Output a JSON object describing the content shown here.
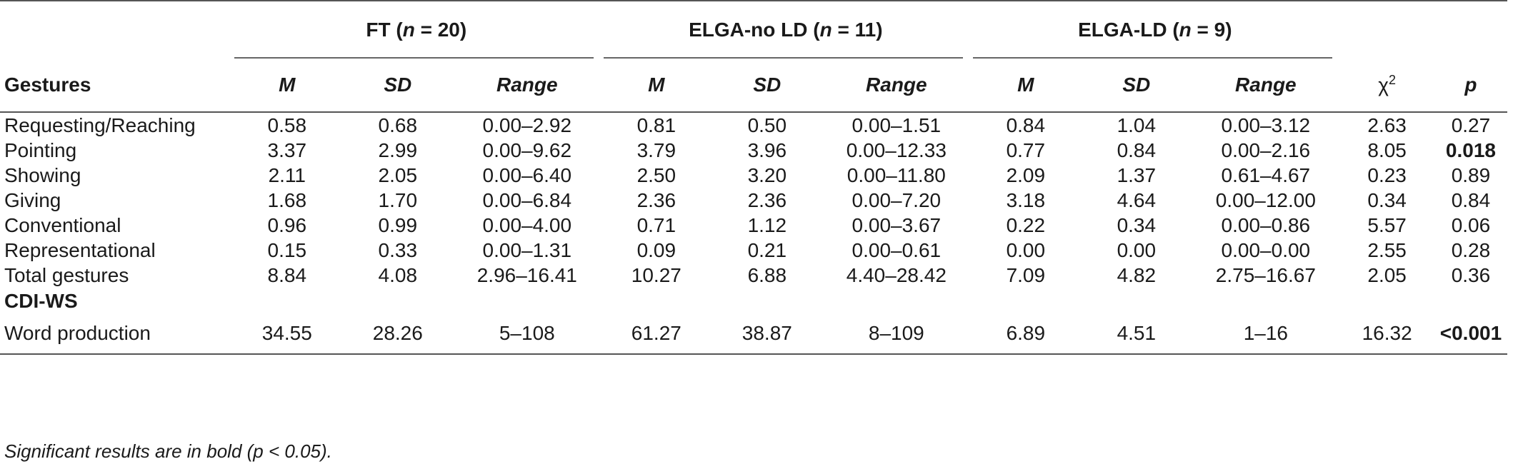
{
  "groups": {
    "ft": "FT (n = 20)",
    "elga_no_ld": "ELGA-no LD (n = 11)",
    "elga_ld": "ELGA-LD (n = 9)"
  },
  "headers": {
    "gestures": "Gestures",
    "m": "M",
    "sd": "SD",
    "range": "Range",
    "chi_base": "χ",
    "chi_sup": "2",
    "p": "p"
  },
  "rows": [
    {
      "label": "Requesting/Reaching",
      "ft": [
        "0.58",
        "0.68",
        "0.00–2.92"
      ],
      "nold": [
        "0.81",
        "0.50",
        "0.00–1.51"
      ],
      "ld": [
        "0.84",
        "1.04",
        "0.00–3.12"
      ],
      "chi": "2.63",
      "p": "0.27"
    },
    {
      "label": "Pointing",
      "ft": [
        "3.37",
        "2.99",
        "0.00–9.62"
      ],
      "nold": [
        "3.79",
        "3.96",
        "0.00–12.33"
      ],
      "ld": [
        "0.77",
        "0.84",
        "0.00–2.16"
      ],
      "chi": "8.05",
      "p": "0.018"
    },
    {
      "label": "Showing",
      "ft": [
        "2.11",
        "2.05",
        "0.00–6.40"
      ],
      "nold": [
        "2.50",
        "3.20",
        "0.00–11.80"
      ],
      "ld": [
        "2.09",
        "1.37",
        "0.61–4.67"
      ],
      "chi": "0.23",
      "p": "0.89"
    },
    {
      "label": "Giving",
      "ft": [
        "1.68",
        "1.70",
        "0.00–6.84"
      ],
      "nold": [
        "2.36",
        "2.36",
        "0.00–7.20"
      ],
      "ld": [
        "3.18",
        "4.64",
        "0.00–12.00"
      ],
      "chi": "0.34",
      "p": "0.84"
    },
    {
      "label": "Conventional",
      "ft": [
        "0.96",
        "0.99",
        "0.00–4.00"
      ],
      "nold": [
        "0.71",
        "1.12",
        "0.00–3.67"
      ],
      "ld": [
        "0.22",
        "0.34",
        "0.00–0.86"
      ],
      "chi": "5.57",
      "p": "0.06"
    },
    {
      "label": "Representational",
      "ft": [
        "0.15",
        "0.33",
        "0.00–1.31"
      ],
      "nold": [
        "0.09",
        "0.21",
        "0.00–0.61"
      ],
      "ld": [
        "0.00",
        "0.00",
        "0.00–0.00"
      ],
      "chi": "2.55",
      "p": "0.28"
    },
    {
      "label": "Total gestures",
      "ft": [
        "8.84",
        "4.08",
        "2.96–16.41"
      ],
      "nold": [
        "10.27",
        "6.88",
        "4.40–28.42"
      ],
      "ld": [
        "7.09",
        "4.82",
        "2.75–16.67"
      ],
      "chi": "2.05",
      "p": "0.36"
    }
  ],
  "section": "CDI-WS",
  "word_row": {
    "label": "Word production",
    "ft": [
      "34.55",
      "28.26",
      "5–108"
    ],
    "nold": [
      "61.27",
      "38.87",
      "8–109"
    ],
    "ld": [
      "6.89",
      "4.51",
      "1–16"
    ],
    "chi": "16.32",
    "p": "<0.001"
  },
  "footnote": "Significant results are in bold (p < 0.05)."
}
